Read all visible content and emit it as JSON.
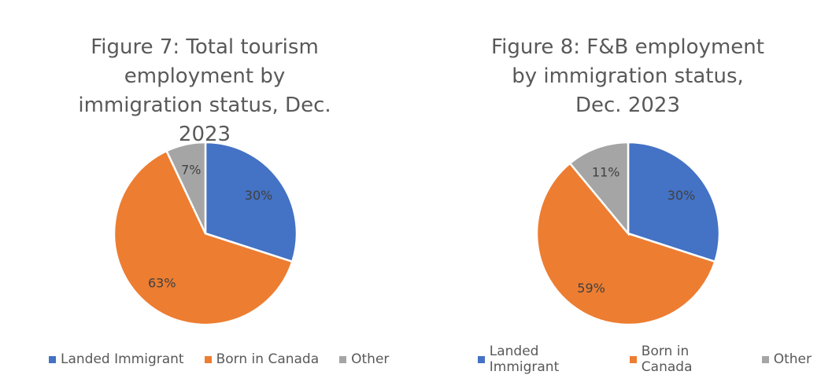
{
  "chart_data": [
    {
      "type": "pie",
      "title": "Figure 7: Total tourism employment by immigration status, Dec. 2023",
      "categories": [
        "Landed Immigrant",
        "Born in Canada",
        "Other"
      ],
      "values": [
        30,
        63,
        7
      ],
      "labels": [
        "30%",
        "63%",
        "7%"
      ],
      "colors": [
        "#4472C4",
        "#ED7D31",
        "#A5A5A5"
      ],
      "legend": "bottom"
    },
    {
      "type": "pie",
      "title": "Figure 8: F&B employment by immigration status, Dec. 2023",
      "categories": [
        "Landed Immigrant",
        "Born in Canada",
        "Other"
      ],
      "values": [
        30,
        59,
        11
      ],
      "labels": [
        "30%",
        "59%",
        "11%"
      ],
      "colors": [
        "#4472C4",
        "#ED7D31",
        "#A5A5A5"
      ],
      "legend": "bottom"
    }
  ]
}
